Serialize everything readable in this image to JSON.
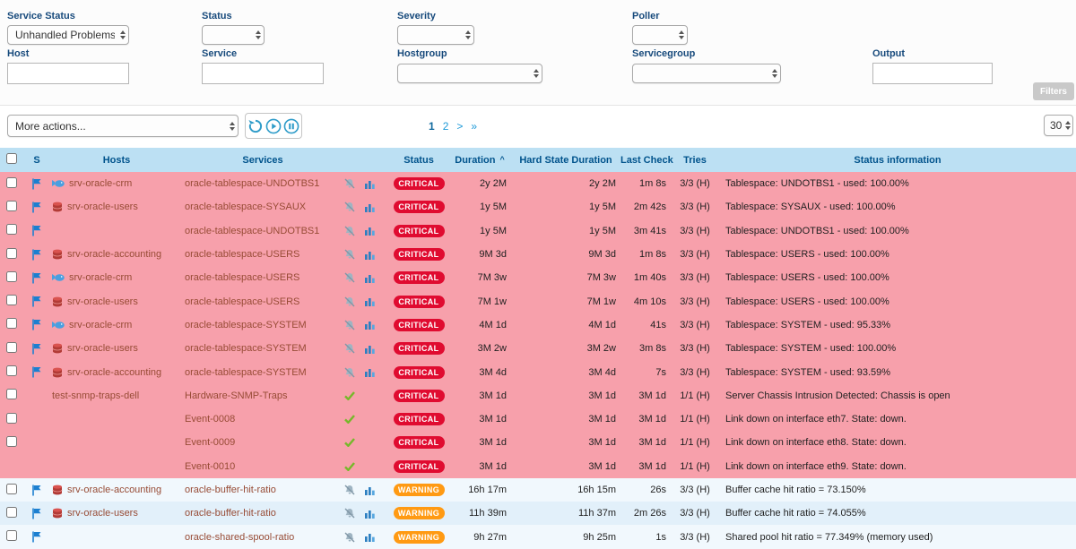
{
  "colors": {
    "critical_row": "#f7a0ab",
    "warning_row_a": "#f1f8fd",
    "warning_row_b": "#e2f0fa",
    "critical_badge": "#e00b30",
    "warning_badge": "#ff9a13",
    "header_bg": "#bce0f3",
    "header_text": "#00538c",
    "link_color": "#974b35",
    "accent_blue": "#2f9cc9",
    "label_blue": "#174a7c"
  },
  "filters": {
    "service_status": {
      "label": "Service Status",
      "value": "Unhandled Problems"
    },
    "status": {
      "label": "Status",
      "value": ""
    },
    "severity": {
      "label": "Severity",
      "value": ""
    },
    "poller": {
      "label": "Poller",
      "value": ""
    },
    "host": {
      "label": "Host",
      "value": ""
    },
    "service": {
      "label": "Service",
      "value": ""
    },
    "hostgroup": {
      "label": "Hostgroup",
      "value": ""
    },
    "servicegroup": {
      "label": "Servicegroup",
      "value": ""
    },
    "output": {
      "label": "Output",
      "value": ""
    },
    "filters_button": "Filters"
  },
  "toolbar": {
    "more_actions": "More actions...",
    "pagination": [
      {
        "label": "1",
        "current": true
      },
      {
        "label": "2",
        "current": false
      },
      {
        "label": ">",
        "current": false
      },
      {
        "label": "»",
        "current": false
      }
    ],
    "page_size": "30"
  },
  "table": {
    "columns": {
      "s": "S",
      "hosts": "Hosts",
      "services": "Services",
      "status": "Status",
      "duration": "Duration",
      "hard_state_duration": "Hard State Duration",
      "last_check": "Last Check",
      "tries": "Tries",
      "status_information": "Status information"
    },
    "sort_column": "Duration",
    "sort_indicator": "^",
    "rows": [
      {
        "checkbox": true,
        "flag": true,
        "host_icon": "cloud",
        "host": "srv-oracle-crm",
        "service": "oracle-tablespace-UNDOTBS1",
        "icons": "bell-chart",
        "status": "CRITICAL",
        "duration": "2y 2M",
        "hard_state_duration": "2y 2M",
        "last_check": "1m 8s",
        "tries": "3/3 (H)",
        "info": "Tablespace: UNDOTBS1 - used: 100.00%"
      },
      {
        "checkbox": true,
        "flag": true,
        "host_icon": "database",
        "host": "srv-oracle-users",
        "service": "oracle-tablespace-SYSAUX",
        "icons": "bell-chart",
        "status": "CRITICAL",
        "duration": "1y 5M",
        "hard_state_duration": "1y 5M",
        "last_check": "2m 42s",
        "tries": "3/3 (H)",
        "info": "Tablespace: SYSAUX - used: 100.00%"
      },
      {
        "checkbox": true,
        "flag": true,
        "host_icon": null,
        "host": "",
        "service": "oracle-tablespace-UNDOTBS1",
        "icons": "bell-chart",
        "status": "CRITICAL",
        "duration": "1y 5M",
        "hard_state_duration": "1y 5M",
        "last_check": "3m 41s",
        "tries": "3/3 (H)",
        "info": "Tablespace: UNDOTBS1 - used: 100.00%"
      },
      {
        "checkbox": true,
        "flag": true,
        "host_icon": "database",
        "host": "srv-oracle-accounting",
        "service": "oracle-tablespace-USERS",
        "icons": "bell-chart",
        "status": "CRITICAL",
        "duration": "9M 3d",
        "hard_state_duration": "9M 3d",
        "last_check": "1m 8s",
        "tries": "3/3 (H)",
        "info": "Tablespace: USERS - used: 100.00%"
      },
      {
        "checkbox": true,
        "flag": true,
        "host_icon": "cloud",
        "host": "srv-oracle-crm",
        "service": "oracle-tablespace-USERS",
        "icons": "bell-chart",
        "status": "CRITICAL",
        "duration": "7M 3w",
        "hard_state_duration": "7M 3w",
        "last_check": "1m 40s",
        "tries": "3/3 (H)",
        "info": "Tablespace: USERS - used: 100.00%"
      },
      {
        "checkbox": true,
        "flag": true,
        "host_icon": "database",
        "host": "srv-oracle-users",
        "service": "oracle-tablespace-USERS",
        "icons": "bell-chart",
        "status": "CRITICAL",
        "duration": "7M 1w",
        "hard_state_duration": "7M 1w",
        "last_check": "4m 10s",
        "tries": "3/3 (H)",
        "info": "Tablespace: USERS - used: 100.00%"
      },
      {
        "checkbox": true,
        "flag": true,
        "host_icon": "cloud",
        "host": "srv-oracle-crm",
        "service": "oracle-tablespace-SYSTEM",
        "icons": "bell-chart",
        "status": "CRITICAL",
        "duration": "4M 1d",
        "hard_state_duration": "4M 1d",
        "last_check": "41s",
        "tries": "3/3 (H)",
        "info": "Tablespace: SYSTEM - used: 95.33%"
      },
      {
        "checkbox": true,
        "flag": true,
        "host_icon": "database",
        "host": "srv-oracle-users",
        "service": "oracle-tablespace-SYSTEM",
        "icons": "bell-chart",
        "status": "CRITICAL",
        "duration": "3M 2w",
        "hard_state_duration": "3M 2w",
        "last_check": "3m 8s",
        "tries": "3/3 (H)",
        "info": "Tablespace: SYSTEM - used: 100.00%"
      },
      {
        "checkbox": true,
        "flag": true,
        "host_icon": "database",
        "host": "srv-oracle-accounting",
        "service": "oracle-tablespace-SYSTEM",
        "icons": "bell-chart",
        "status": "CRITICAL",
        "duration": "3M 4d",
        "hard_state_duration": "3M 4d",
        "last_check": "7s",
        "tries": "3/3 (H)",
        "info": "Tablespace: SYSTEM - used: 93.59%"
      },
      {
        "checkbox": true,
        "flag": false,
        "host_icon": null,
        "host": "test-snmp-traps-dell",
        "service": "Hardware-SNMP-Traps",
        "icons": "check",
        "status": "CRITICAL",
        "duration": "3M 1d",
        "hard_state_duration": "3M 1d",
        "last_check": "3M 1d",
        "tries": "1/1 (H)",
        "info": "Server Chassis Intrusion Detected: Chassis is open"
      },
      {
        "checkbox": true,
        "flag": false,
        "host_icon": null,
        "host": "",
        "service": "Event-0008",
        "icons": "check",
        "status": "CRITICAL",
        "duration": "3M 1d",
        "hard_state_duration": "3M 1d",
        "last_check": "3M 1d",
        "tries": "1/1 (H)",
        "info": "Link down on interface eth7. State: down."
      },
      {
        "checkbox": true,
        "flag": false,
        "host_icon": null,
        "host": "",
        "service": "Event-0009",
        "icons": "check",
        "status": "CRITICAL",
        "duration": "3M 1d",
        "hard_state_duration": "3M 1d",
        "last_check": "3M 1d",
        "tries": "1/1 (H)",
        "info": "Link down on interface eth8. State: down."
      },
      {
        "checkbox": false,
        "flag": false,
        "host_icon": null,
        "host": "",
        "service": "Event-0010",
        "icons": "check",
        "status": "CRITICAL",
        "duration": "3M 1d",
        "hard_state_duration": "3M 1d",
        "last_check": "3M 1d",
        "tries": "1/1 (H)",
        "info": "Link down on interface eth9. State: down."
      },
      {
        "checkbox": true,
        "flag": true,
        "host_icon": "database",
        "host": "srv-oracle-accounting",
        "service": "oracle-buffer-hit-ratio",
        "icons": "bell-chart",
        "status": "WARNING",
        "duration": "16h 17m",
        "hard_state_duration": "16h 15m",
        "last_check": "26s",
        "tries": "3/3 (H)",
        "info": "Buffer cache hit ratio = 73.150%"
      },
      {
        "checkbox": true,
        "flag": true,
        "host_icon": "database",
        "host": "srv-oracle-users",
        "service": "oracle-buffer-hit-ratio",
        "icons": "bell-chart",
        "status": "WARNING",
        "duration": "11h 39m",
        "hard_state_duration": "11h 37m",
        "last_check": "2m 26s",
        "tries": "3/3 (H)",
        "info": "Buffer cache hit ratio = 74.055%"
      },
      {
        "checkbox": true,
        "flag": true,
        "host_icon": null,
        "host": "",
        "service": "oracle-shared-spool-ratio",
        "icons": "bell-chart",
        "status": "WARNING",
        "duration": "9h 27m",
        "hard_state_duration": "9h 25m",
        "last_check": "1s",
        "tries": "3/3 (H)",
        "info": "Shared pool hit ratio = 77.349% (memory used)"
      }
    ]
  }
}
